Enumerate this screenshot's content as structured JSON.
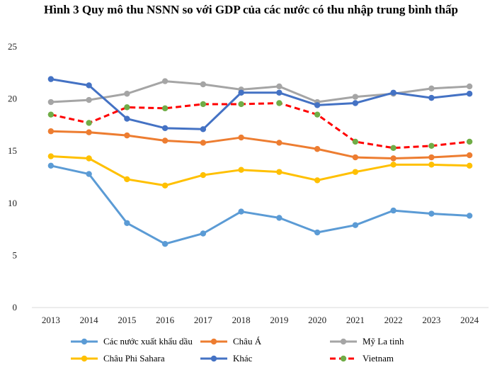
{
  "chart_data": {
    "type": "line",
    "title": "Hình 3 Quy mô thu NSNN so với GDP của các nước có thu nhập trung bình thấp",
    "xlabel": "",
    "ylabel": "",
    "categories": [
      "2013",
      "2014",
      "2015",
      "2016",
      "2017",
      "2018",
      "2019",
      "2020",
      "2021",
      "2022",
      "2023",
      "2024"
    ],
    "ylim": [
      0,
      25
    ],
    "yticks": [
      0,
      5,
      10,
      15,
      20,
      25
    ],
    "grid": false,
    "legend_position": "bottom",
    "series": [
      {
        "name": "Các nước xuất khẩu dầu",
        "color": "#5b9bd5",
        "dashed": false,
        "marker_color": "#5b9bd5",
        "values": [
          13.6,
          12.8,
          8.1,
          6.1,
          7.1,
          9.2,
          8.6,
          7.2,
          7.9,
          9.3,
          9.0,
          8.8
        ]
      },
      {
        "name": "Châu Á",
        "color": "#ed7d31",
        "dashed": false,
        "marker_color": "#ed7d31",
        "values": [
          16.9,
          16.8,
          16.5,
          16.0,
          15.8,
          16.3,
          15.8,
          15.2,
          14.4,
          14.3,
          14.4,
          14.6
        ]
      },
      {
        "name": "Mỹ La tinh",
        "color": "#a5a5a5",
        "dashed": false,
        "marker_color": "#a5a5a5",
        "values": [
          19.7,
          19.9,
          20.5,
          21.7,
          21.4,
          20.9,
          21.2,
          19.7,
          20.2,
          20.5,
          21.0,
          21.2
        ]
      },
      {
        "name": "Châu Phi Sahara",
        "color": "#ffc000",
        "dashed": false,
        "marker_color": "#ffc000",
        "values": [
          14.5,
          14.3,
          12.3,
          11.7,
          12.7,
          13.2,
          13.0,
          12.2,
          13.0,
          13.7,
          13.7,
          13.6
        ]
      },
      {
        "name": "Khác",
        "color": "#4472c4",
        "dashed": false,
        "marker_color": "#4472c4",
        "values": [
          21.9,
          21.3,
          18.1,
          17.2,
          17.1,
          20.6,
          20.6,
          19.4,
          19.6,
          20.6,
          20.1,
          20.5
        ]
      },
      {
        "name": "Vietnam",
        "color": "#ff0000",
        "dashed": true,
        "marker_color": "#70ad47",
        "values": [
          18.5,
          17.7,
          19.2,
          19.1,
          19.5,
          19.5,
          19.6,
          18.5,
          15.9,
          15.3,
          15.5,
          15.9
        ]
      }
    ]
  }
}
